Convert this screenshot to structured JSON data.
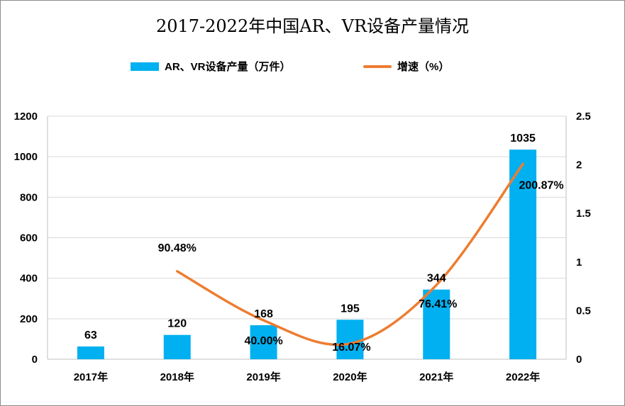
{
  "chart_data": {
    "type": "bar",
    "title": "2017-2022年中国AR、VR设备产量情况",
    "categories": [
      "2017年",
      "2018年",
      "2019年",
      "2020年",
      "2021年",
      "2022年"
    ],
    "series": [
      {
        "name": "AR、VR设备产量（万件）",
        "type": "bar",
        "axis": "left",
        "color": "#00b0f0",
        "values": [
          63,
          120,
          168,
          195,
          344,
          1035
        ],
        "labels": [
          "63",
          "120",
          "168",
          "195",
          "344",
          "1035"
        ]
      },
      {
        "name": "增速（%）",
        "type": "line",
        "axis": "right",
        "color": "#ed7d31",
        "values": [
          null,
          0.9048,
          0.4,
          0.1607,
          0.7641,
          2.0087
        ],
        "labels": [
          "",
          "90.48%",
          "40.00%",
          "16.07%",
          "76.41%",
          "200.87%"
        ]
      }
    ],
    "y_left": {
      "min": 0,
      "max": 1200,
      "ticks": [
        "0",
        "200",
        "400",
        "600",
        "800",
        "1000",
        "1200"
      ]
    },
    "y_right": {
      "min": 0,
      "max": 2.5,
      "ticks": [
        "0",
        "0.5",
        "1",
        "1.5",
        "2",
        "2.5"
      ]
    },
    "grid": true,
    "legend_position": "top"
  }
}
